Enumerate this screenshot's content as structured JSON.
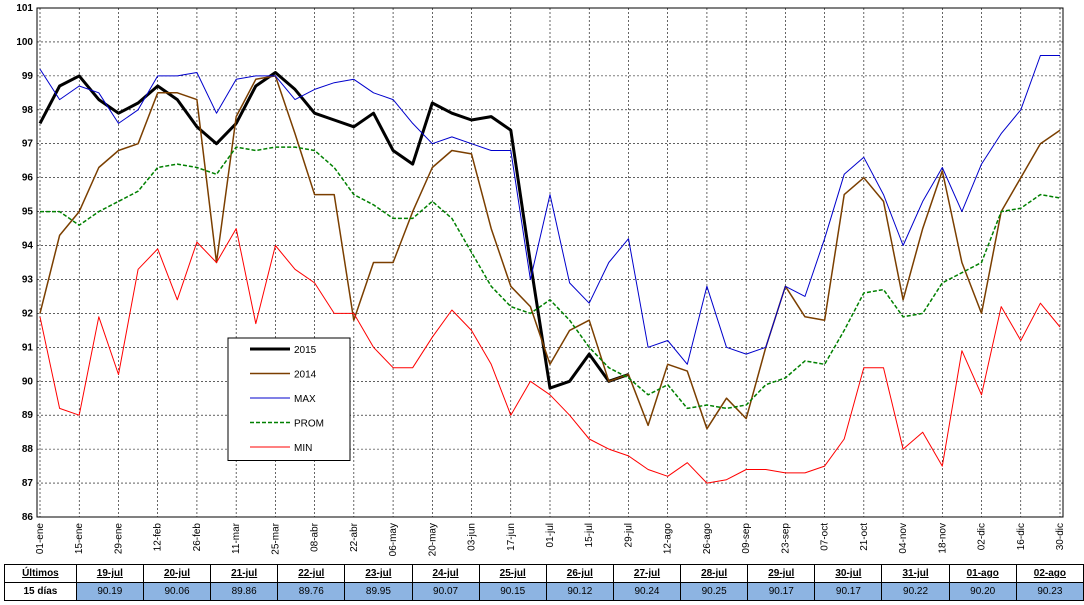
{
  "chart_data": {
    "type": "line",
    "categories": [
      "01-ene",
      null,
      "15-ene",
      null,
      "29-ene",
      null,
      "12-feb",
      null,
      "26-feb",
      null,
      "11-mar",
      null,
      "25-mar",
      null,
      "08-abr",
      null,
      "22-abr",
      null,
      "06-may",
      null,
      "20-may",
      null,
      "03-jun",
      null,
      "17-jun",
      null,
      "01-jul",
      null,
      "15-jul",
      null,
      "29-jul",
      null,
      "12-ago",
      null,
      "26-ago",
      null,
      "09-sep",
      null,
      "23-sep",
      null,
      "07-oct",
      null,
      "21-oct",
      null,
      "04-nov",
      null,
      "18-nov",
      null,
      "02-dic",
      null,
      "16-dic",
      null,
      "30-dic"
    ],
    "ylim": [
      86,
      101
    ],
    "yticks": [
      86,
      87,
      88,
      89,
      90,
      91,
      92,
      93,
      94,
      95,
      96,
      97,
      98,
      99,
      100,
      101
    ],
    "grid": true,
    "legend": "center-left",
    "series": [
      {
        "name": "2015",
        "color": "#000000",
        "width": 3,
        "dash": false,
        "values": [
          97.6,
          98.7,
          99.0,
          98.3,
          97.9,
          98.2,
          98.7,
          98.3,
          97.5,
          97.0,
          97.6,
          98.7,
          99.1,
          98.6,
          97.9,
          97.7,
          97.5,
          97.9,
          96.8,
          96.4,
          98.2,
          97.9,
          97.7,
          97.8,
          97.4,
          93.5,
          89.8,
          90.0,
          90.8,
          90.0,
          90.2,
          null,
          null,
          null,
          null,
          null,
          null,
          null,
          null,
          null,
          null,
          null,
          null,
          null,
          null,
          null,
          null,
          null,
          null,
          null,
          null,
          null,
          null
        ]
      },
      {
        "name": "2014",
        "color": "#7b3f00",
        "width": 1.5,
        "dash": false,
        "values": [
          92.0,
          94.3,
          95.0,
          96.3,
          96.8,
          97.0,
          98.5,
          98.5,
          98.3,
          93.5,
          97.8,
          98.9,
          99.0,
          97.3,
          95.5,
          95.5,
          91.8,
          93.5,
          93.5,
          95.0,
          96.3,
          96.8,
          96.7,
          94.5,
          92.8,
          92.2,
          90.5,
          91.5,
          91.8,
          90.0,
          90.2,
          88.7,
          90.5,
          90.3,
          88.6,
          89.5,
          88.9,
          91.0,
          92.8,
          91.9,
          91.8,
          95.5,
          96.0,
          95.3,
          92.4,
          94.5,
          96.2,
          93.5,
          92.0,
          95.0,
          96.0,
          97.0,
          97.4
        ]
      },
      {
        "name": "MAX",
        "color": "#0000cc",
        "width": 1,
        "dash": false,
        "values": [
          99.2,
          98.3,
          98.7,
          98.5,
          97.6,
          98.0,
          99.0,
          99.0,
          99.1,
          97.9,
          98.9,
          99.0,
          99.0,
          98.3,
          98.6,
          98.8,
          98.9,
          98.5,
          98.3,
          97.6,
          97.0,
          97.2,
          97.0,
          96.8,
          96.8,
          93.0,
          95.5,
          92.9,
          92.3,
          93.5,
          94.2,
          91.0,
          91.2,
          90.5,
          92.8,
          91.0,
          90.8,
          91.0,
          92.8,
          92.5,
          94.2,
          96.1,
          96.6,
          95.5,
          94.0,
          95.3,
          96.3,
          95.0,
          96.4,
          97.3,
          98.0,
          99.6,
          99.6
        ]
      },
      {
        "name": "PROM",
        "color": "#008000",
        "width": 1.5,
        "dash": true,
        "values": [
          95.0,
          95.0,
          94.6,
          95.0,
          95.3,
          95.6,
          96.3,
          96.4,
          96.3,
          96.1,
          96.9,
          96.8,
          96.9,
          96.9,
          96.8,
          96.3,
          95.5,
          95.2,
          94.8,
          94.8,
          95.3,
          94.8,
          93.8,
          92.8,
          92.2,
          92.0,
          92.4,
          91.8,
          91.0,
          90.4,
          90.1,
          89.6,
          89.9,
          89.2,
          89.3,
          89.2,
          89.3,
          89.9,
          90.1,
          90.6,
          90.5,
          91.5,
          92.6,
          92.7,
          91.9,
          92.0,
          92.9,
          93.2,
          93.5,
          95.0,
          95.1,
          95.5,
          95.4
        ]
      },
      {
        "name": "MIN",
        "color": "#ff0000",
        "width": 1,
        "dash": false,
        "values": [
          91.9,
          89.2,
          89.0,
          91.9,
          90.2,
          93.3,
          93.9,
          92.4,
          94.1,
          93.5,
          94.5,
          91.7,
          94.0,
          93.3,
          92.9,
          92.0,
          92.0,
          91.0,
          90.4,
          90.4,
          91.3,
          92.1,
          91.5,
          90.5,
          89.0,
          90.0,
          89.6,
          89.0,
          88.3,
          88.0,
          87.8,
          87.4,
          87.2,
          87.6,
          87.0,
          87.1,
          87.4,
          87.4,
          87.3,
          87.3,
          87.5,
          88.3,
          90.4,
          90.4,
          88.0,
          88.5,
          87.5,
          90.9,
          89.6,
          92.2,
          91.2,
          92.3,
          91.6
        ]
      }
    ]
  },
  "table": {
    "header": [
      "Últimos",
      "19-jul",
      "20-jul",
      "21-jul",
      "22-jul",
      "23-jul",
      "24-jul",
      "25-jul",
      "26-jul",
      "27-jul",
      "28-jul",
      "29-jul",
      "30-jul",
      "31-jul",
      "01-ago",
      "02-ago"
    ],
    "rows": [
      [
        "15 días",
        "90.19",
        "90.06",
        "89.86",
        "89.76",
        "89.95",
        "90.07",
        "90.15",
        "90.12",
        "90.24",
        "90.25",
        "90.17",
        "90.17",
        "90.22",
        "90.20",
        "90.23"
      ]
    ]
  }
}
